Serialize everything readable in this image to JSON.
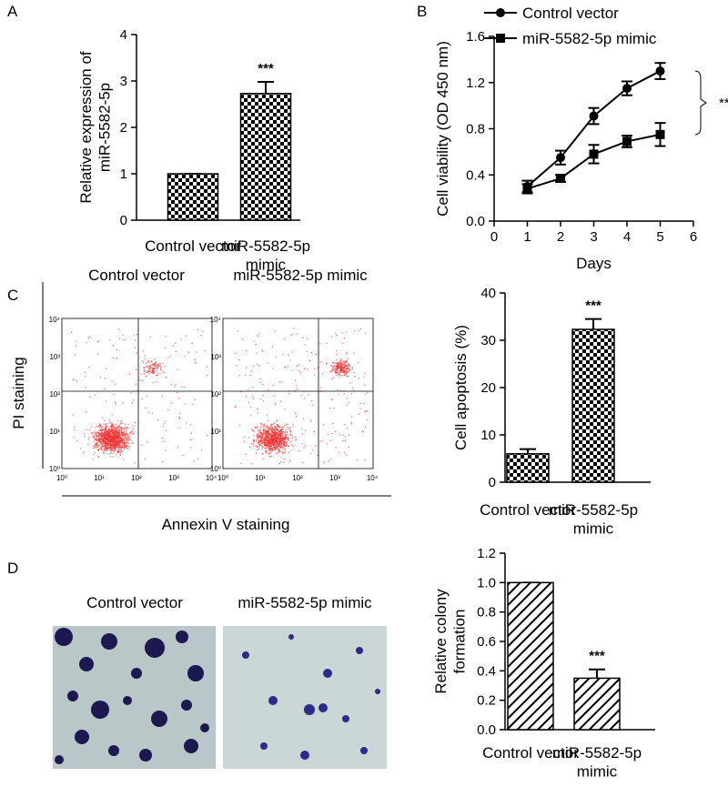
{
  "chart_data": [
    {
      "type": "bar",
      "ylabel": "Relative expression of\nmiR-5582-5p",
      "categories": [
        "Control vector",
        "miR-5582-5p\nmimic"
      ],
      "values": [
        1,
        2.73
      ],
      "errors": [
        0,
        0.25
      ],
      "color": "#000",
      "pattern": "checker",
      "annotation": "***",
      "ylim": [
        0,
        4
      ],
      "yticks": [
        0,
        1,
        2,
        3,
        4
      ]
    },
    {
      "type": "line",
      "xlabel": "Days",
      "ylabel": "Cell viability (OD 450 nm)",
      "xlim": [
        0,
        6
      ],
      "xticks": [
        0,
        1,
        2,
        3,
        4,
        5,
        6
      ],
      "ylim": [
        0,
        1.6
      ],
      "yticks": [
        {
          "value": 0,
          "label": "0.0"
        },
        0.4,
        0.8,
        1.2,
        1.6
      ],
      "annotation": "**",
      "series": [
        {
          "name": "Control vector",
          "color": "#000",
          "marker": "circle",
          "x": [
            1,
            2,
            3,
            4,
            5
          ],
          "values": [
            0.3,
            0.55,
            0.91,
            1.15,
            1.3
          ],
          "errors": [
            0.05,
            0.06,
            0.07,
            0.06,
            0.07
          ]
        },
        {
          "name": "miR-5582-5p mimic",
          "color": "#000",
          "marker": "square",
          "x": [
            1,
            2,
            3,
            4,
            5
          ],
          "values": [
            0.28,
            0.37,
            0.58,
            0.69,
            0.75
          ],
          "errors": [
            0.04,
            0.03,
            0.08,
            0.05,
            0.1
          ]
        }
      ]
    },
    {
      "type": "bar",
      "ylabel": "Cell apoptosis (%)",
      "categories": [
        "Control vector",
        "miR-5582-5p\nmimic"
      ],
      "values": [
        6,
        32.3
      ],
      "errors": [
        1,
        2.2
      ],
      "color": "#000",
      "pattern": "checker",
      "annotation": "***",
      "ylim": [
        0,
        40
      ],
      "yticks": [
        0,
        10,
        20,
        30,
        40
      ]
    },
    {
      "type": "bar",
      "ylabel": "Relative colony\nformation",
      "categories": [
        "Control vector",
        "miR-5582-5p\nmimic"
      ],
      "values": [
        1,
        0.35
      ],
      "errors": [
        0,
        0.06
      ],
      "color": "#000",
      "pattern": "hatch",
      "annotation": "***",
      "ylim": [
        0,
        1.2
      ],
      "yticks": [
        {
          "value": 0,
          "label": "0.0"
        },
        0.2,
        0.4,
        0.6,
        0.8,
        {
          "value": 1,
          "label": "1.0"
        },
        1.2
      ]
    }
  ],
  "figure": {
    "panels": [
      "A",
      "B",
      "C",
      "D"
    ],
    "flow": {
      "titles": [
        "Control vector",
        "miR-5582-5p mimic"
      ],
      "y_label": "PI staining",
      "x_label": "Annexin V staining",
      "ticks": [
        "10⁰",
        "10¹",
        "10²",
        "10³",
        "10⁴"
      ]
    },
    "colony": {
      "titles": [
        "Control vector",
        "miR-5582-5p mimic"
      ]
    }
  }
}
